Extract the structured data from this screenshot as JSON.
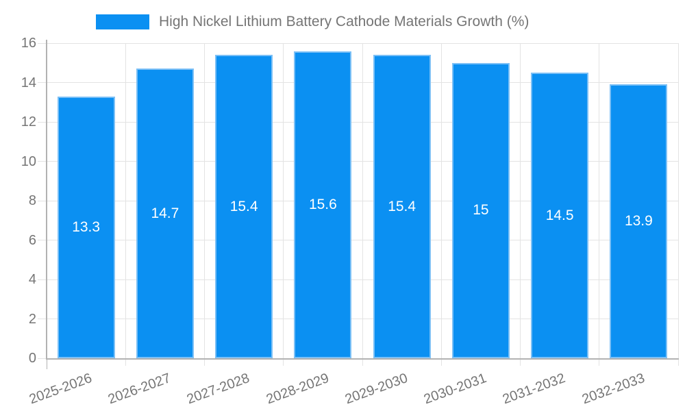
{
  "legend": {
    "label": "High Nickel Lithium Battery Cathode Materials Growth (%)",
    "swatch_color": "#0b90f2"
  },
  "chart_data": {
    "type": "bar",
    "title": "High Nickel Lithium Battery Cathode Materials Growth (%)",
    "categories": [
      "2025-2026",
      "2026-2027",
      "2027-2028",
      "2028-2029",
      "2029-2030",
      "2030-2031",
      "2031-2032",
      "2032-2033"
    ],
    "values": [
      13.3,
      14.7,
      15.4,
      15.6,
      15.4,
      15,
      14.5,
      13.9
    ],
    "value_labels": [
      "13.3",
      "14.7",
      "15.4",
      "15.6",
      "15.4",
      "15",
      "14.5",
      "13.9"
    ],
    "xlabel": "",
    "ylabel": "",
    "ylim": [
      0,
      16
    ],
    "yticks": [
      0,
      2,
      4,
      6,
      8,
      10,
      12,
      14,
      16
    ],
    "grid": true,
    "legend_position": "top",
    "x_tick_rotation_deg": -20,
    "colors": {
      "bar_fill": "#0b90f2",
      "bar_border": "#7cc0f6",
      "value_label": "#ffffff",
      "axis_text": "#757575",
      "gridline": "#e3e3e3",
      "axis_line": "#b2b2b2"
    }
  }
}
